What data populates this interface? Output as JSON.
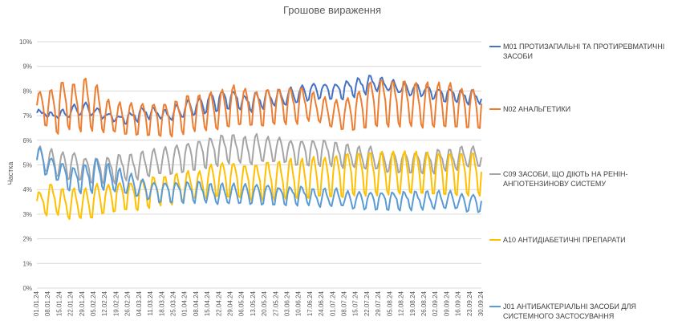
{
  "chart_data": {
    "type": "line",
    "title": "Грошове вираження",
    "ylabel": "Частка",
    "xlabel": "",
    "ylim": [
      0,
      10
    ],
    "yticks": [
      "0%",
      "1%",
      "2%",
      "3%",
      "4%",
      "5%",
      "6%",
      "7%",
      "8%",
      "9%",
      "10%"
    ],
    "xtick_labels": [
      "01.01.24",
      "08.01.24",
      "15.01.24",
      "22.01.24",
      "29.01.24",
      "05.02.24",
      "12.02.24",
      "19.02.24",
      "26.02.24",
      "04.03.24",
      "11.03.24",
      "18.03.24",
      "25.03.24",
      "01.04.24",
      "08.04.24",
      "15.04.24",
      "22.04.24",
      "29.04.24",
      "06.05.24",
      "13.05.24",
      "20.05.24",
      "27.05.24",
      "03.06.24",
      "10.06.24",
      "17.06.24",
      "24.06.24",
      "01.07.24",
      "08.07.24",
      "15.07.24",
      "22.07.24",
      "29.07.24",
      "05.08.24",
      "12.08.24",
      "19.08.24",
      "26.08.24",
      "02.09.24",
      "09.09.24",
      "16.09.24",
      "23.09.24",
      "30.09.24"
    ],
    "grid": true,
    "legend_position": "right",
    "series": [
      {
        "name": "M01 ПРОТИЗАПАЛЬНІ ТА ПРОТИРЕВМАТИЧНІ ЗАСОБИ",
        "color": "#4472C4",
        "weekly_base": [
          7.0,
          6.9,
          6.9,
          7.0,
          7.0,
          6.9,
          6.8,
          6.7,
          6.8,
          6.9,
          6.9,
          6.8,
          6.9,
          7.0,
          7.1,
          7.2,
          7.3,
          7.3,
          7.2,
          7.3,
          7.4,
          7.4,
          7.5,
          7.6,
          7.7,
          7.7,
          7.7,
          7.8,
          7.9,
          8.0,
          8.0,
          7.9,
          7.8,
          7.8,
          7.7,
          7.6,
          7.6,
          7.5,
          7.5,
          7.4
        ],
        "weekly_peak": [
          0.2,
          0.2,
          0.3,
          0.4,
          0.5,
          0.4,
          0.3,
          0.3,
          0.3,
          0.4,
          0.4,
          0.4,
          0.5,
          0.6,
          0.6,
          0.7,
          0.7,
          0.7,
          0.6,
          0.6,
          0.6,
          0.6,
          0.6,
          0.6,
          0.6,
          0.6,
          0.6,
          0.6,
          0.6,
          0.6,
          0.5,
          0.5,
          0.5,
          0.5,
          0.5,
          0.5,
          0.5,
          0.5,
          0.5,
          0.6
        ]
      },
      {
        "name": "N02 АНАЛЬГЕТИКИ",
        "color": "#ED7D31",
        "weekly_base": [
          6.6,
          6.3,
          6.5,
          6.4,
          6.4,
          6.3,
          6.3,
          6.2,
          6.2,
          6.2,
          6.2,
          6.2,
          6.3,
          6.4,
          6.4,
          6.4,
          6.5,
          6.6,
          6.6,
          6.6,
          6.7,
          6.7,
          6.7,
          6.8,
          6.7,
          6.5,
          6.4,
          6.4,
          6.5,
          6.6,
          6.6,
          6.6,
          6.6,
          6.5,
          6.5,
          6.5,
          6.5,
          6.5,
          6.5,
          6.6
        ],
        "weekly_peak": [
          1.4,
          1.8,
          1.9,
          1.9,
          2.1,
          1.9,
          1.3,
          1.3,
          1.3,
          1.3,
          1.3,
          1.3,
          1.3,
          1.4,
          1.4,
          1.5,
          1.5,
          1.6,
          1.5,
          1.4,
          1.4,
          1.4,
          1.4,
          1.3,
          1.2,
          1.2,
          1.2,
          1.3,
          1.5,
          1.8,
          1.9,
          1.8,
          1.8,
          1.8,
          1.8,
          1.8,
          1.8,
          1.6,
          1.6,
          1.5
        ]
      },
      {
        "name": "C09 ЗАСОБИ, ЩО ДІЮТЬ НА РЕНІН-АНГІОТЕНЗИНОВУ СИСТЕМУ",
        "color": "#A5A5A5",
        "weekly_base": [
          4.7,
          4.5,
          4.4,
          4.4,
          4.3,
          4.3,
          4.3,
          4.4,
          4.4,
          4.5,
          4.6,
          4.6,
          4.7,
          4.8,
          4.9,
          5.0,
          5.1,
          5.1,
          5.0,
          5.1,
          5.1,
          5.1,
          5.0,
          5.0,
          5.0,
          5.0,
          4.9,
          4.9,
          4.8,
          4.8,
          4.7,
          4.7,
          4.7,
          4.7,
          4.7,
          4.8,
          4.8,
          4.9,
          4.9,
          4.9
        ],
        "weekly_peak": [
          1.0,
          1.1,
          1.1,
          1.1,
          1.0,
          1.0,
          1.0,
          1.0,
          1.0,
          1.0,
          1.0,
          1.1,
          1.1,
          1.1,
          1.1,
          1.1,
          1.1,
          1.1,
          1.1,
          1.1,
          1.0,
          1.0,
          1.0,
          1.0,
          1.0,
          1.0,
          1.0,
          0.9,
          0.9,
          0.9,
          0.8,
          0.8,
          0.8,
          0.8,
          0.8,
          0.8,
          0.8,
          0.8,
          0.8,
          0.8
        ]
      },
      {
        "name": "A10 АНТИДІАБЕТИЧНІ ПРЕПАРАТИ",
        "color": "#FFC000",
        "weekly_base": [
          3.0,
          3.0,
          2.8,
          2.8,
          2.8,
          3.0,
          3.1,
          3.2,
          3.2,
          3.3,
          3.4,
          3.4,
          3.5,
          3.6,
          3.6,
          3.7,
          3.7,
          3.7,
          3.6,
          3.6,
          3.6,
          3.6,
          3.6,
          3.6,
          3.7,
          3.7,
          3.7,
          3.8,
          3.8,
          3.8,
          3.8,
          3.8,
          3.8,
          3.8,
          3.8,
          3.8,
          3.8,
          3.8,
          3.8,
          3.8
        ],
        "weekly_peak": [
          0.9,
          1.2,
          1.2,
          1.2,
          1.2,
          1.2,
          1.1,
          1.1,
          1.1,
          1.1,
          1.1,
          1.1,
          1.1,
          1.1,
          1.1,
          1.3,
          1.4,
          1.4,
          1.4,
          1.4,
          1.5,
          1.5,
          1.6,
          1.6,
          1.6,
          1.6,
          1.7,
          1.7,
          1.7,
          1.7,
          1.7,
          1.7,
          1.7,
          1.7,
          1.7,
          1.7,
          1.7,
          1.7,
          1.7,
          1.7
        ]
      },
      {
        "name": "J01 АНТИБАКТЕРІАЛЬНІ ЗАСОБИ ДЛЯ СИСТЕМНОГО ЗАСТОСУВАННЯ",
        "color": "#5B9BD5",
        "weekly_base": [
          4.6,
          4.4,
          4.0,
          3.9,
          3.9,
          4.0,
          3.9,
          3.8,
          3.7,
          3.6,
          3.5,
          3.5,
          3.5,
          3.5,
          3.5,
          3.4,
          3.4,
          3.4,
          3.4,
          3.4,
          3.4,
          3.4,
          3.4,
          3.4,
          3.3,
          3.3,
          3.3,
          3.2,
          3.2,
          3.2,
          3.2,
          3.2,
          3.2,
          3.2,
          3.2,
          3.2,
          3.2,
          3.1,
          3.1,
          3.1
        ],
        "weekly_peak": [
          1.1,
          0.9,
          1.1,
          1.0,
          1.1,
          1.2,
          1.1,
          1.0,
          0.9,
          0.8,
          0.8,
          0.8,
          0.8,
          0.8,
          0.8,
          0.8,
          0.8,
          0.8,
          0.8,
          0.8,
          0.8,
          0.7,
          0.7,
          0.7,
          0.7,
          0.7,
          0.7,
          0.7,
          0.7,
          0.7,
          0.7,
          0.7,
          0.7,
          0.7,
          0.7,
          0.7,
          0.7,
          0.7,
          0.7,
          0.7
        ]
      }
    ]
  }
}
